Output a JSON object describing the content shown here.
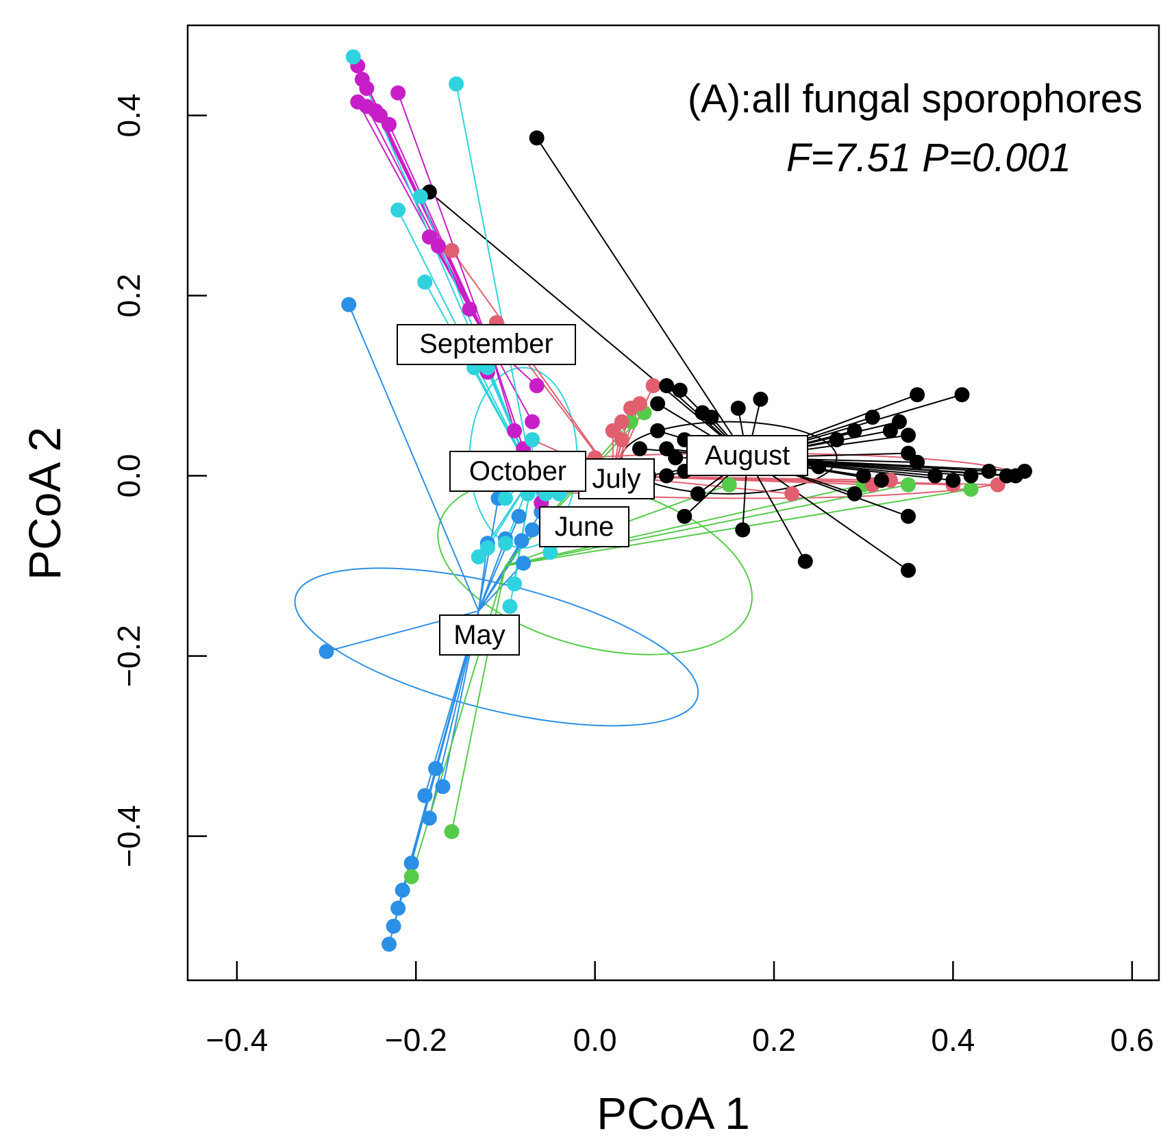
{
  "chart_data": {
    "type": "scatter",
    "title": "(A):all fungal sporophores",
    "stats_text": "F=7.51  P=0.001",
    "xlabel": "PCoA 1",
    "ylabel": "PCoA 2",
    "xlim": [
      -0.455,
      0.63
    ],
    "ylim": [
      -0.56,
      0.5
    ],
    "xticks": [
      -0.4,
      -0.2,
      0.0,
      0.2,
      0.4,
      0.6
    ],
    "xtick_labels": [
      "−0.4",
      "−0.2",
      "0.0",
      "0.2",
      "0.4",
      "0.6"
    ],
    "yticks": [
      -0.4,
      -0.2,
      0.0,
      0.2,
      0.4
    ],
    "ytick_labels": [
      "−0.4",
      "−0.2",
      "0.0",
      "0.2",
      "0.4"
    ],
    "series": [
      {
        "name": "May",
        "color": "#2B8FE5",
        "centroid": [
          -0.13,
          -0.15
        ],
        "ellipse": {
          "cx": -0.11,
          "cy": -0.19,
          "rx": 0.07,
          "ry": 0.23,
          "angle": -76
        },
        "points": [
          [
            -0.275,
            0.19
          ],
          [
            -0.3,
            -0.195
          ],
          [
            -0.23,
            -0.52
          ],
          [
            -0.225,
            -0.5
          ],
          [
            -0.22,
            -0.48
          ],
          [
            -0.215,
            -0.46
          ],
          [
            -0.205,
            -0.43
          ],
          [
            -0.185,
            -0.38
          ],
          [
            -0.19,
            -0.355
          ],
          [
            -0.17,
            -0.345
          ],
          [
            -0.178,
            -0.325
          ],
          [
            -0.108,
            -0.025
          ],
          [
            -0.085,
            -0.045
          ],
          [
            -0.082,
            -0.072
          ],
          [
            -0.08,
            -0.097
          ],
          [
            -0.12,
            -0.075
          ],
          [
            -0.1,
            -0.07
          ],
          [
            -0.06,
            -0.04
          ],
          [
            -0.07,
            -0.06
          ]
        ]
      },
      {
        "name": "June",
        "color": "#55CB4A",
        "centroid": [
          -0.1,
          -0.1
        ],
        "ellipse": {
          "cx": 0.0,
          "cy": -0.1,
          "rx": 0.18,
          "ry": 0.09,
          "angle": 15
        },
        "points": [
          [
            -0.16,
            -0.395
          ],
          [
            -0.205,
            -0.445
          ],
          [
            0.055,
            0.07
          ],
          [
            0.04,
            0.06
          ],
          [
            0.3,
            -0.01
          ],
          [
            0.35,
            -0.01
          ],
          [
            0.42,
            -0.015
          ],
          [
            0.15,
            -0.01
          ]
        ]
      },
      {
        "name": "July",
        "color": "#E06070",
        "centroid": [
          0.02,
          0.0
        ],
        "ellipse": {
          "cx": 0.17,
          "cy": 0.0,
          "rx": 0.3,
          "ry": 0.025,
          "angle": 0
        },
        "points": [
          [
            -0.16,
            0.25
          ],
          [
            -0.11,
            0.17
          ],
          [
            0.03,
            0.06
          ],
          [
            0.04,
            0.075
          ],
          [
            0.02,
            0.05
          ],
          [
            0.05,
            0.08
          ],
          [
            0.065,
            0.1
          ],
          [
            0.03,
            0.04
          ],
          [
            0.22,
            -0.02
          ],
          [
            0.31,
            -0.01
          ],
          [
            0.33,
            -0.005
          ],
          [
            0.4,
            -0.01
          ],
          [
            0.45,
            -0.01
          ],
          [
            -0.07,
            0.04
          ],
          [
            0.0,
            0.02
          ]
        ]
      },
      {
        "name": "August",
        "color": "#000000",
        "centroid": [
          0.17,
          0.02
        ],
        "ellipse": {
          "cx": 0.15,
          "cy": 0.02,
          "rx": 0.12,
          "ry": 0.04,
          "angle": 0
        },
        "points": [
          [
            -0.065,
            0.375
          ],
          [
            -0.185,
            0.315
          ],
          [
            0.08,
            0.1
          ],
          [
            0.095,
            0.095
          ],
          [
            0.07,
            0.08
          ],
          [
            0.12,
            0.07
          ],
          [
            0.13,
            0.065
          ],
          [
            0.16,
            0.075
          ],
          [
            0.185,
            0.085
          ],
          [
            0.07,
            0.05
          ],
          [
            0.1,
            0.04
          ],
          [
            0.08,
            0.03
          ],
          [
            0.09,
            0.02
          ],
          [
            0.05,
            0.03
          ],
          [
            0.12,
            0.03
          ],
          [
            0.06,
            0.0
          ],
          [
            0.08,
            0.0
          ],
          [
            0.1,
            0.005
          ],
          [
            0.115,
            -0.02
          ],
          [
            0.1,
            -0.045
          ],
          [
            0.165,
            -0.06
          ],
          [
            0.235,
            -0.095
          ],
          [
            0.35,
            -0.105
          ],
          [
            0.35,
            -0.045
          ],
          [
            0.29,
            -0.02
          ],
          [
            0.25,
            0.01
          ],
          [
            0.27,
            0.04
          ],
          [
            0.29,
            0.05
          ],
          [
            0.31,
            0.065
          ],
          [
            0.33,
            0.05
          ],
          [
            0.34,
            0.06
          ],
          [
            0.36,
            0.09
          ],
          [
            0.41,
            0.09
          ],
          [
            0.35,
            0.045
          ],
          [
            0.35,
            0.025
          ],
          [
            0.36,
            0.015
          ],
          [
            0.38,
            0.0
          ],
          [
            0.4,
            -0.005
          ],
          [
            0.42,
            0.0
          ],
          [
            0.44,
            0.005
          ],
          [
            0.47,
            0.0
          ],
          [
            0.48,
            0.005
          ],
          [
            0.46,
            0.0
          ],
          [
            0.3,
            0.0
          ],
          [
            0.32,
            -0.005
          ]
        ]
      },
      {
        "name": "September",
        "color": "#C81EC8",
        "centroid": [
          -0.12,
          0.15
        ],
        "ellipse": null,
        "points": [
          [
            -0.265,
            0.455
          ],
          [
            -0.26,
            0.44
          ],
          [
            -0.255,
            0.43
          ],
          [
            -0.265,
            0.415
          ],
          [
            -0.255,
            0.41
          ],
          [
            -0.245,
            0.405
          ],
          [
            -0.24,
            0.4
          ],
          [
            -0.23,
            0.39
          ],
          [
            -0.22,
            0.425
          ],
          [
            -0.185,
            0.265
          ],
          [
            -0.175,
            0.255
          ],
          [
            -0.14,
            0.185
          ],
          [
            -0.12,
            0.115
          ],
          [
            -0.065,
            0.1
          ],
          [
            -0.07,
            0.06
          ],
          [
            -0.09,
            0.05
          ],
          [
            -0.08,
            0.03
          ],
          [
            -0.06,
            -0.03
          ]
        ]
      },
      {
        "name": "October",
        "color": "#2ED3DD",
        "centroid": [
          -0.07,
          0.0
        ],
        "ellipse": {
          "cx": -0.08,
          "cy": 0.02,
          "rx": 0.06,
          "ry": 0.1,
          "angle": 0
        },
        "points": [
          [
            -0.27,
            0.465
          ],
          [
            -0.155,
            0.435
          ],
          [
            -0.22,
            0.295
          ],
          [
            -0.195,
            0.31
          ],
          [
            -0.19,
            0.215
          ],
          [
            -0.135,
            0.12
          ],
          [
            -0.12,
            0.12
          ],
          [
            -0.07,
            0.04
          ],
          [
            -0.1,
            -0.025
          ],
          [
            -0.075,
            -0.02
          ],
          [
            -0.055,
            -0.02
          ],
          [
            -0.04,
            -0.02
          ],
          [
            -0.12,
            -0.08
          ],
          [
            -0.13,
            -0.09
          ],
          [
            -0.1,
            -0.075
          ],
          [
            -0.05,
            -0.085
          ],
          [
            -0.09,
            -0.12
          ],
          [
            -0.095,
            -0.145
          ]
        ]
      }
    ]
  },
  "labels": {
    "september": "September",
    "october": "October",
    "july": "July",
    "august": "August",
    "june": "June",
    "may": "May"
  }
}
